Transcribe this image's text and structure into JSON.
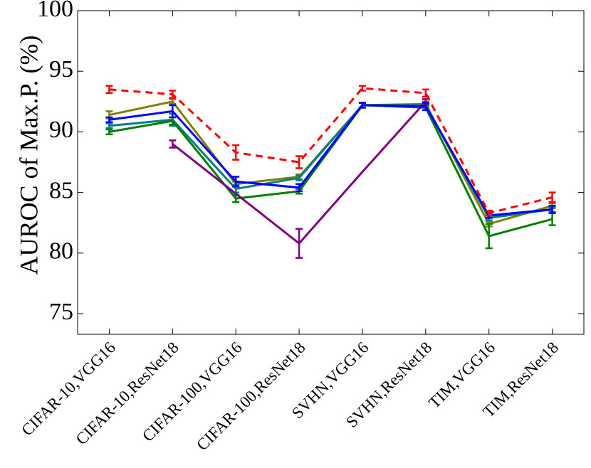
{
  "chart_data": {
    "type": "line",
    "ylabel": "AUROC of Max.P. (%)",
    "categories": [
      "CIFAR-10,VGG16",
      "CIFAR-10,ResNet18",
      "CIFAR-100,VGG16",
      "CIFAR-100,ResNet18",
      "SVHN,VGG16",
      "SVHN,ResNet18",
      "TIM,VGG16",
      "TIM,ResNet18"
    ],
    "ylim": [
      73.3,
      100
    ],
    "yticks": [
      75,
      80,
      85,
      90,
      95,
      100
    ],
    "series": [
      {
        "color": "#808000",
        "linestyle": "solid",
        "values": [
          91.4,
          92.5,
          85.7,
          86.3,
          92.2,
          92.3,
          82.4,
          83.9
        ],
        "errors": [
          0.3,
          0.2,
          0.2,
          0.2,
          0.2,
          0.2,
          0.2,
          0.2
        ]
      },
      {
        "color": "#008080",
        "linestyle": "solid",
        "values": [
          90.5,
          91.0,
          85.3,
          86.2,
          92.2,
          92.2,
          82.9,
          83.6
        ],
        "errors": [
          0.2,
          0.5,
          0.3,
          0.2,
          0.2,
          0.2,
          0.2,
          0.2
        ]
      },
      {
        "color": "#008000",
        "linestyle": "solid",
        "values": [
          90.0,
          90.9,
          84.5,
          85.1,
          92.2,
          92.0,
          81.4,
          82.8
        ],
        "errors": [
          0.2,
          0.3,
          0.3,
          0.2,
          0.2,
          0.2,
          1.0,
          0.5
        ]
      },
      {
        "color": "#800080",
        "linestyle": "solid",
        "values": [
          null,
          89.0,
          84.9,
          80.8,
          86.7,
          92.5,
          null,
          null
        ],
        "errors": [
          null,
          0.3,
          null,
          1.2,
          null,
          0.2,
          null,
          null
        ]
      },
      {
        "color": "#0000ff",
        "linestyle": "solid",
        "values": [
          91.0,
          91.7,
          85.9,
          85.4,
          92.2,
          92.1,
          83.1,
          83.6
        ],
        "errors": [
          0.2,
          0.5,
          0.4,
          0.3,
          0.2,
          0.3,
          0.2,
          0.3
        ]
      },
      {
        "color": "#ff0000",
        "linestyle": "dashed",
        "values": [
          93.5,
          93.1,
          88.3,
          87.5,
          93.6,
          93.2,
          83.3,
          84.6
        ],
        "errors": [
          0.3,
          0.3,
          0.6,
          0.5,
          0.2,
          0.3,
          0.2,
          0.4
        ]
      }
    ]
  }
}
